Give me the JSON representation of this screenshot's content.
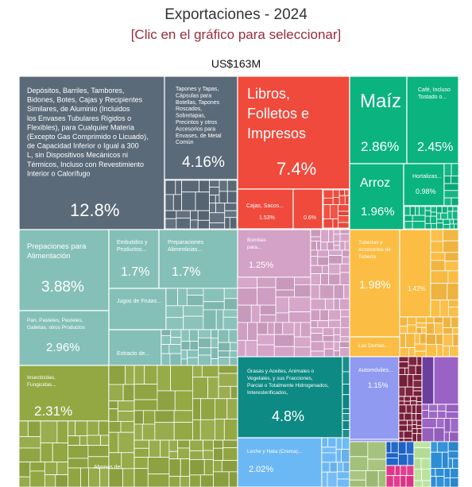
{
  "header": {
    "title": "Exportaciones - 2024",
    "subtitle": "[Clic en el gráfico para seleccionar]",
    "total": "US$163M"
  },
  "colors": {
    "metal": "#5b6a78",
    "paper": "#ef4a3c",
    "vegetable": "#0bb37f",
    "food": "#85c0b8",
    "machinery": "#d3a2c6",
    "stone": "#fbbd43",
    "chemical": "#93a843",
    "fats": "#0d8a83",
    "transport": "#8f9af0",
    "plastics": "#6cb8f5",
    "textiles": "#7b1f3b",
    "misc": "#6b3f9e",
    "instruments": "#9a62c4",
    "animal": "#a4c27a",
    "minerals": "#1f64c8",
    "wood": "#b8e39a"
  },
  "chart_data": {
    "type": "treemap",
    "title": "Exportaciones - 2024",
    "subtitle": "[Clic en el gráfico para seleccionar]",
    "total_label": "US$163M",
    "items": [
      {
        "name": "Depósitos, Barriles, Tambores, Bidones, Botes, Cajas y Recipientes Similares, de Aluminio (Incluidos los Envases Tubulares Rígidos o Flexibles), para Cualquier Materia (Excepto Gas Comprimido o Licuado), de Capacidad Inferior o Igual a 300 L, sin Dispositivos Mecánicos ni Térmicos, Incluso con Revestimiento Interior o Calorífugo",
        "value_label": "12.8%",
        "value": 12.8,
        "group": "metal"
      },
      {
        "name": "Tapones y Tapas, Cápsulas para Botellas, Tapones Roscados, Sobretapas, Precintos y otros Accesorios para Envases, de Metal Común",
        "value_label": "4.16%",
        "value": 4.16,
        "group": "metal"
      },
      {
        "name": "Libros, Folletos e Impresos Similares",
        "value_label": "7.4%",
        "value": 7.4,
        "group": "paper"
      },
      {
        "name": "Cajas, Sacos...",
        "value_label": "1.53%",
        "value": 1.53,
        "group": "paper"
      },
      {
        "name": "",
        "value_label": "0.6%",
        "value": 0.6,
        "group": "paper"
      },
      {
        "name": "Maíz",
        "value_label": "2.86%",
        "value": 2.86,
        "group": "vegetable"
      },
      {
        "name": "Café, Incluso Tostado o...",
        "value_label": "2.45%",
        "value": 2.45,
        "group": "vegetable"
      },
      {
        "name": "Arroz",
        "value_label": "1.96%",
        "value": 1.96,
        "group": "vegetable"
      },
      {
        "name": "Hortalizas...",
        "value_label": "0.98%",
        "value": 0.98,
        "group": "vegetable"
      },
      {
        "name": "Prepaciones para Alimentación Animal",
        "value_label": "3.88%",
        "value": 3.88,
        "group": "food"
      },
      {
        "name": "Embutidos y Productos...",
        "value_label": "1.7%",
        "value": 1.7,
        "group": "food"
      },
      {
        "name": "Preparaciones Alimenticias...",
        "value_label": "1.7%",
        "value": 1.7,
        "group": "food"
      },
      {
        "name": "Jugos de Frutas...",
        "value_label": "",
        "group": "food"
      },
      {
        "name": "Pan, Pasteles, Pasteles, Galletas, otros Productos de...",
        "value_label": "2.96%",
        "value": 2.96,
        "group": "food"
      },
      {
        "name": "Extracto de...",
        "value_label": "",
        "group": "food"
      },
      {
        "name": "Bombas para...",
        "value_label": "1.25%",
        "value": 1.25,
        "group": "machinery"
      },
      {
        "name": "Tuberías y Accesorios de Tubería",
        "value_label": "1.98%",
        "value": 1.98,
        "group": "stone"
      },
      {
        "name": "",
        "value_label": "1.42%",
        "value": 1.42,
        "group": "stone"
      },
      {
        "name": "Las Demás...",
        "value_label": "",
        "group": "stone"
      },
      {
        "name": "Insecticidas, Fungicidas...",
        "value_label": "2.31%",
        "value": 2.31,
        "group": "chemical"
      },
      {
        "name": "Abonos de...",
        "value_label": "",
        "group": "chemical"
      },
      {
        "name": "Grasas y Aceites, Animales o Vegetales, y sus Fracciones, Parcial o Totalmente Hidrogenados, Interesterificados, Reesterificados o...",
        "value_label": "4.8%",
        "value": 4.8,
        "group": "fats"
      },
      {
        "name": "Leche y Nata (Crema)...",
        "value_label": "2.02%",
        "value": 2.02,
        "group": "plastics"
      },
      {
        "name": "Automóviles...",
        "value_label": "1.15%",
        "value": 1.15,
        "group": "transport"
      }
    ]
  }
}
